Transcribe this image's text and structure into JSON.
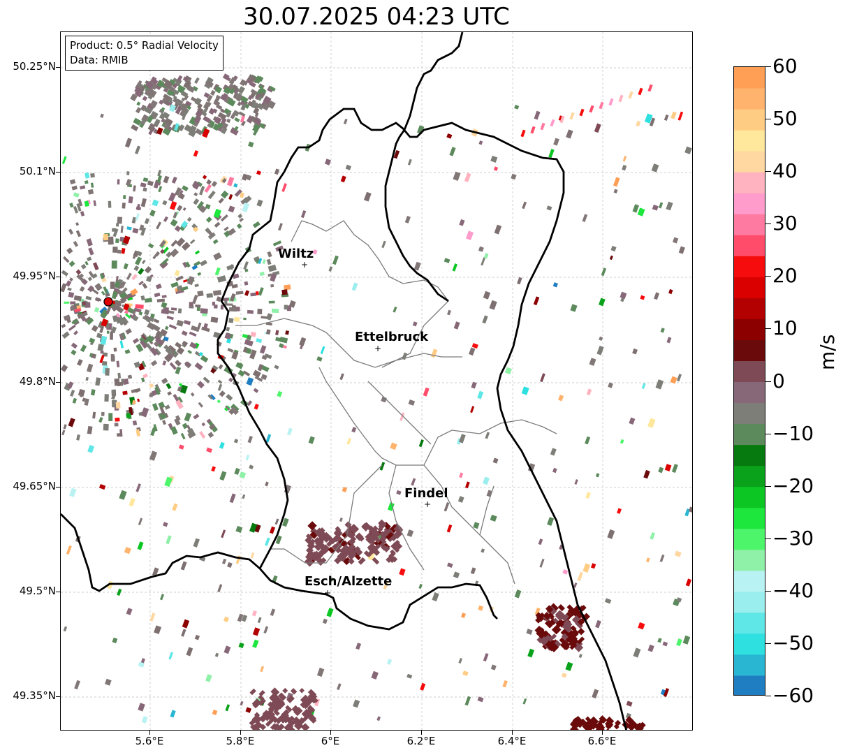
{
  "title": "30.07.2025 04:23 UTC",
  "info": {
    "product": "Product: 0.5° Radial Velocity",
    "data": "Data: RMIB"
  },
  "lat_labels": [
    "50.25°N",
    "50.1°N",
    "49.95°N",
    "49.8°N",
    "49.65°N",
    "49.5°N",
    "49.35°N"
  ],
  "lon_labels": [
    "5.6°E",
    "5.8°E",
    "6°E",
    "6.2°E",
    "6.4°E",
    "6.6°E"
  ],
  "cities": [
    {
      "name": "Wiltz"
    },
    {
      "name": "Ettelbruck"
    },
    {
      "name": "Findel"
    },
    {
      "name": "Esch/Alzette"
    }
  ],
  "colorbar": {
    "unit": "m/s",
    "ticks": [
      "60",
      "50",
      "40",
      "30",
      "20",
      "10",
      "0",
      "−10",
      "−20",
      "−30",
      "−40",
      "−50",
      "−60"
    ],
    "min": -60,
    "max": 60
  },
  "colors": {
    "velocity_palette": [
      "#1f7ec2",
      "#29b6d3",
      "#2ee0e0",
      "#5fe6e6",
      "#9aeeee",
      "#b9f2f2",
      "#8ff0a8",
      "#4df56a",
      "#1de63c",
      "#0cc624",
      "#0aa21a",
      "#077a0f",
      "#5c8a5c",
      "#7e7e78",
      "#876878",
      "#7e4a55",
      "#6a0a0a",
      "#8c0000",
      "#b30000",
      "#db0000",
      "#f60c0c",
      "#ff4c6a",
      "#ff7aa0",
      "#ff9ccc",
      "#ffb3c0",
      "#ffd7a0",
      "#ffe79c",
      "#ffcc84",
      "#ffb36c",
      "#ff9f55"
    ]
  }
}
